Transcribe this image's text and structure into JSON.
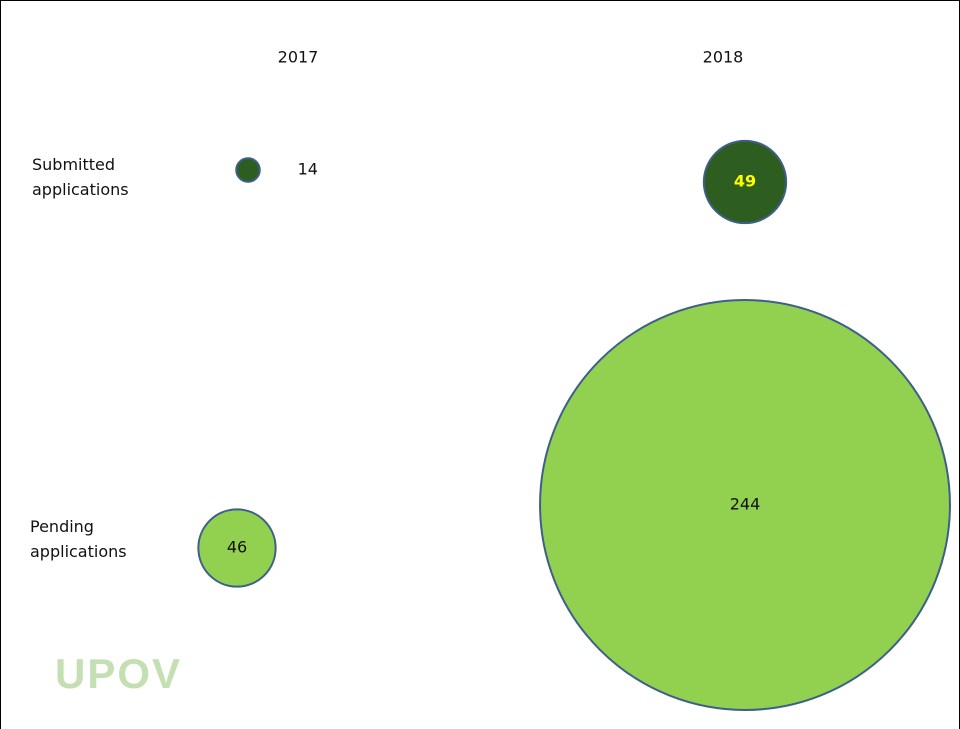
{
  "chart_data": {
    "type": "bubble",
    "categories": [
      "2017",
      "2018"
    ],
    "series": [
      {
        "name": "Submitted applications",
        "color": "#2e5e1f",
        "values": [
          14,
          49
        ]
      },
      {
        "name": "Pending applications",
        "color": "#92d050",
        "values": [
          46,
          244
        ]
      }
    ],
    "logo": "UPOV"
  }
}
